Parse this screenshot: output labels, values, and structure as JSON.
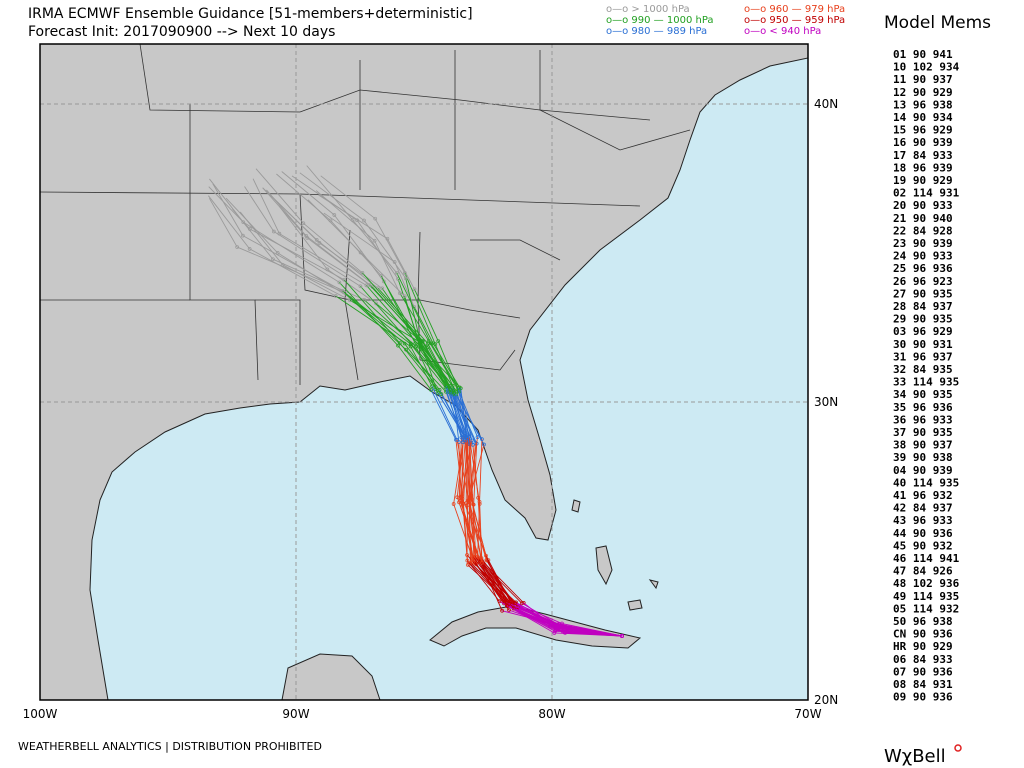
{
  "header": {
    "title": "IRMA ECMWF Ensemble Guidance [51-members+deterministic]",
    "subtitle": "Forecast Init: 2017090900 --> Next 10 days"
  },
  "legend": [
    {
      "label": "o—o > 1000 hPa",
      "color": "#9a9a9a"
    },
    {
      "label": "o—o 960 — 979 hPa",
      "color": "#e8401c"
    },
    {
      "label": "o—o 990 — 1000 hPa",
      "color": "#22a022"
    },
    {
      "label": "o—o 950 — 959 hPa",
      "color": "#c00000"
    },
    {
      "label": "o—o 980 — 989 hPa",
      "color": "#2a6fd4"
    },
    {
      "label": "o—o < 940 hPa",
      "color": "#c000c0"
    }
  ],
  "map": {
    "lon_labels": [
      "100W",
      "90W",
      "80W",
      "70W"
    ],
    "lat_labels": [
      "40N",
      "30N",
      "20N"
    ]
  },
  "members": {
    "title": "Model Mems",
    "rows": [
      "01 90 941",
      "10 102 934",
      "11 90 937",
      "12 90 929",
      "13 96 938",
      "14 90 934",
      "15 96 929",
      "16 90 939",
      "17 84 933",
      "18 96 939",
      "19 90 929",
      "02 114 931",
      "20 90 933",
      "21 90 940",
      "22 84 928",
      "23 90 939",
      "24 90 933",
      "25 96 936",
      "26 96 923",
      "27 90 935",
      "28 84 937",
      "29 90 935",
      "03 96 929",
      "30 90 931",
      "31 96 937",
      "32 84 935",
      "33 114 935",
      "34 90 935",
      "35 96 936",
      "36 96 933",
      "37 90 935",
      "38 90 937",
      "39 90 938",
      "04 90 939",
      "40 114 935",
      "41 96 932",
      "42 84 937",
      "43 96 933",
      "44 90 936",
      "45 90 932",
      "46 114 941",
      "47 84 926",
      "48 102 936",
      "49 114 935",
      "05 114 932",
      "50 96 938",
      "CN 90 936",
      "HR 90 929",
      "06 84 933",
      "07 90 936",
      "08 84 931",
      "09 90 936"
    ]
  },
  "footer": "WEATHERBELL ANALYTICS | DISTRIBUTION PROHIBITED",
  "logo": "WχBell"
}
